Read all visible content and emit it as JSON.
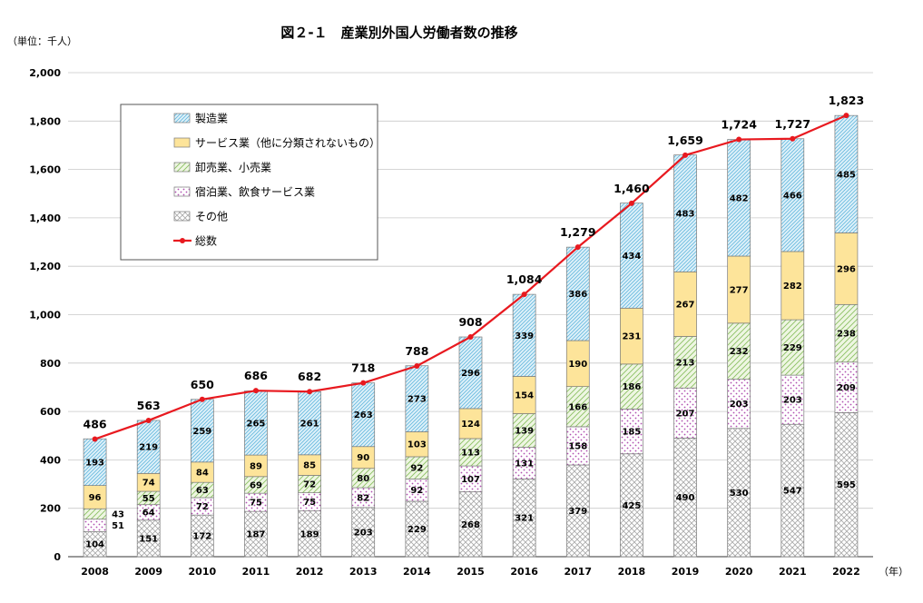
{
  "chart_data": {
    "type": "bar",
    "stacked": true,
    "title": "図２-１　産業別外国人労働者数の推移",
    "unit_label": "（単位：千人）",
    "x_unit_label": "（年）",
    "categories": [
      "2008",
      "2009",
      "2010",
      "2011",
      "2012",
      "2013",
      "2014",
      "2015",
      "2016",
      "2017",
      "2018",
      "2019",
      "2020",
      "2021",
      "2022"
    ],
    "ylim": [
      0,
      2000
    ],
    "yticks": [
      0,
      200,
      400,
      600,
      800,
      1000,
      1200,
      1400,
      1600,
      1800,
      2000
    ],
    "ytick_labels": [
      "0",
      "200",
      "400",
      "600",
      "800",
      "1,000",
      "1,200",
      "1,400",
      "1,600",
      "1,800",
      "2,000"
    ],
    "grid": true,
    "legend_position": "top-left",
    "series": [
      {
        "name": "その他",
        "pattern": "crosshatch",
        "color": "#bfbfbf",
        "values": [
          104,
          151,
          172,
          187,
          189,
          203,
          229,
          268,
          321,
          379,
          425,
          490,
          530,
          547,
          595
        ]
      },
      {
        "name": "宿泊業、飲食サービス業",
        "pattern": "dots",
        "color": "#c060c0",
        "values": [
          51,
          64,
          72,
          75,
          75,
          82,
          92,
          107,
          131,
          158,
          185,
          207,
          203,
          203,
          209
        ]
      },
      {
        "name": "卸売業、小売業",
        "pattern": "diagonal",
        "color": "#9ccf6c",
        "values": [
          43,
          55,
          63,
          69,
          72,
          80,
          92,
          113,
          139,
          166,
          186,
          213,
          232,
          229,
          238
        ]
      },
      {
        "name": "サービス業（他に分類されないもの）",
        "pattern": "solid",
        "color": "#fde49a",
        "values": [
          96,
          74,
          84,
          89,
          85,
          90,
          103,
          124,
          154,
          190,
          231,
          267,
          277,
          282,
          296
        ]
      },
      {
        "name": "製造業",
        "pattern": "diagonal-fine",
        "color": "#7cc8e6",
        "values": [
          193,
          219,
          259,
          265,
          261,
          263,
          273,
          296,
          339,
          386,
          434,
          483,
          482,
          466,
          485
        ]
      }
    ],
    "total": {
      "name": "総数",
      "type": "line",
      "color": "#e8191f",
      "values": [
        486,
        563,
        650,
        686,
        682,
        718,
        788,
        908,
        1084,
        1279,
        1460,
        1659,
        1724,
        1727,
        1823
      ],
      "labels": [
        "486",
        "563",
        "650",
        "686",
        "682",
        "718",
        "788",
        "908",
        "1,084",
        "1,279",
        "1,460",
        "1,659",
        "1,724",
        "1,727",
        "1,823"
      ]
    },
    "legend_order": [
      "製造業",
      "サービス業（他に分類されないもの）",
      "卸売業、小売業",
      "宿泊業、飲食サービス業",
      "その他",
      "総数"
    ]
  }
}
